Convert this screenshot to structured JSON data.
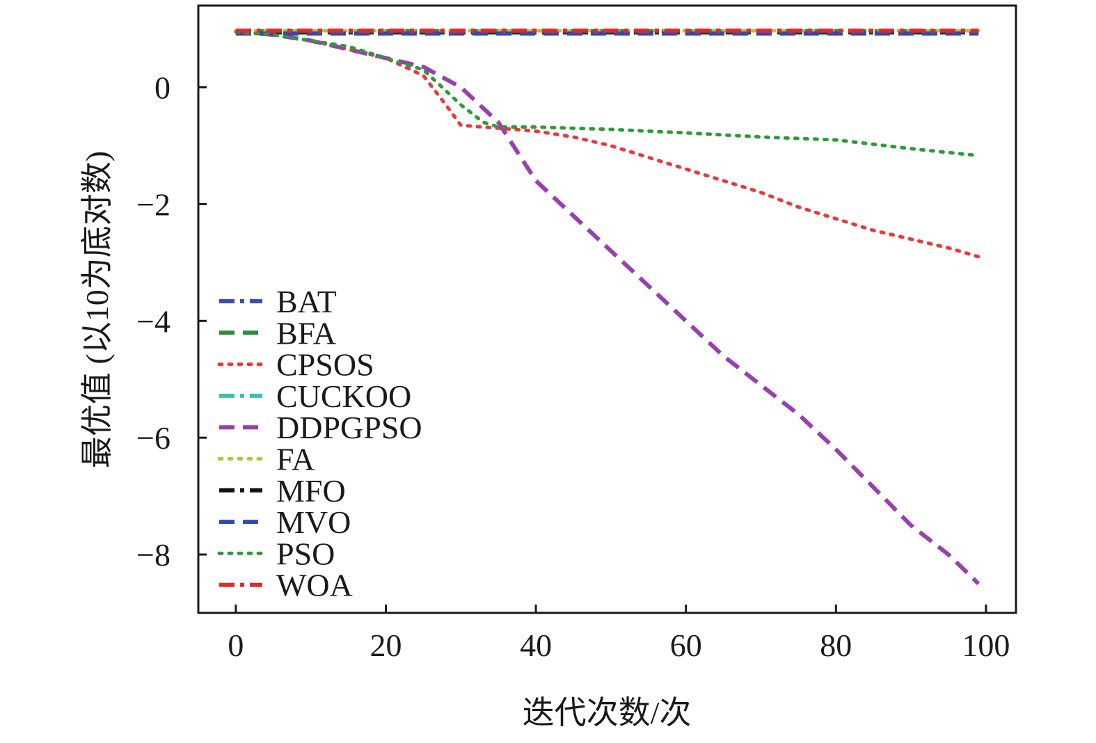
{
  "chart_data": {
    "type": "line",
    "xlabel": "迭代次数/次",
    "ylabel": "最优值 (以10为底对数)",
    "xlim": [
      -5,
      104
    ],
    "ylim": [
      -9.0,
      1.4
    ],
    "xticks": [
      0,
      20,
      40,
      60,
      80,
      100
    ],
    "yticks": [
      0,
      -2,
      -4,
      -6,
      -8
    ],
    "xtick_labels": [
      "0",
      "20",
      "40",
      "60",
      "80",
      "100"
    ],
    "ytick_labels": [
      "0",
      "−2",
      "−4",
      "−6",
      "−8"
    ],
    "grid": false,
    "legend_position": "bottom-left",
    "series": [
      {
        "name": "BAT",
        "color": "#3a4fb0",
        "dash": "dashdot",
        "x": [
          0,
          99
        ],
        "y": [
          0.94,
          0.94
        ]
      },
      {
        "name": "BFA",
        "color": "#2e8b3a",
        "dash": "dashed",
        "x": [
          0,
          99
        ],
        "y": [
          0.96,
          0.96
        ]
      },
      {
        "name": "CPSOS",
        "color": "#e83a3a",
        "dash": "dotted",
        "x": [
          0,
          5,
          10,
          15,
          20,
          25,
          28,
          30,
          35,
          40,
          45,
          50,
          55,
          60,
          65,
          70,
          75,
          80,
          85,
          90,
          95,
          99
        ],
        "y": [
          0.95,
          0.9,
          0.8,
          0.65,
          0.5,
          0.2,
          -0.3,
          -0.65,
          -0.7,
          -0.75,
          -0.85,
          -1.0,
          -1.2,
          -1.4,
          -1.6,
          -1.8,
          -2.05,
          -2.25,
          -2.45,
          -2.6,
          -2.75,
          -2.9
        ]
      },
      {
        "name": "CUCKOO",
        "color": "#3cbfb0",
        "dash": "dashdot",
        "x": [
          0,
          99
        ],
        "y": [
          0.93,
          0.93
        ]
      },
      {
        "name": "DDPGPSO",
        "color": "#9a3fb0",
        "dash": "dashed",
        "x": [
          0,
          5,
          10,
          15,
          20,
          25,
          30,
          35,
          40,
          45,
          50,
          55,
          60,
          65,
          70,
          75,
          80,
          85,
          90,
          95,
          99
        ],
        "y": [
          0.95,
          0.9,
          0.8,
          0.65,
          0.5,
          0.35,
          0.0,
          -0.6,
          -1.6,
          -2.2,
          -2.8,
          -3.4,
          -4.0,
          -4.6,
          -5.1,
          -5.6,
          -6.2,
          -6.85,
          -7.5,
          -8.0,
          -8.5
        ]
      },
      {
        "name": "FA",
        "color": "#b5c23a",
        "dash": "dotted",
        "x": [
          0,
          99
        ],
        "y": [
          0.97,
          0.97
        ]
      },
      {
        "name": "MFO",
        "color": "#111111",
        "dash": "dashdot",
        "x": [
          0,
          99
        ],
        "y": [
          0.95,
          0.95
        ]
      },
      {
        "name": "MVO",
        "color": "#3048b0",
        "dash": "dashed",
        "x": [
          0,
          99
        ],
        "y": [
          0.92,
          0.92
        ]
      },
      {
        "name": "PSO",
        "color": "#2e9a3a",
        "dash": "dotted",
        "x": [
          0,
          5,
          10,
          15,
          20,
          25,
          30,
          33,
          35,
          40,
          50,
          60,
          70,
          80,
          90,
          99
        ],
        "y": [
          0.95,
          0.9,
          0.8,
          0.7,
          0.5,
          0.3,
          -0.3,
          -0.6,
          -0.68,
          -0.68,
          -0.72,
          -0.78,
          -0.85,
          -0.9,
          -1.05,
          -1.17
        ]
      },
      {
        "name": "WOA",
        "color": "#e02a2a",
        "dash": "dashdot",
        "x": [
          0,
          99
        ],
        "y": [
          0.97,
          0.97
        ]
      }
    ]
  }
}
